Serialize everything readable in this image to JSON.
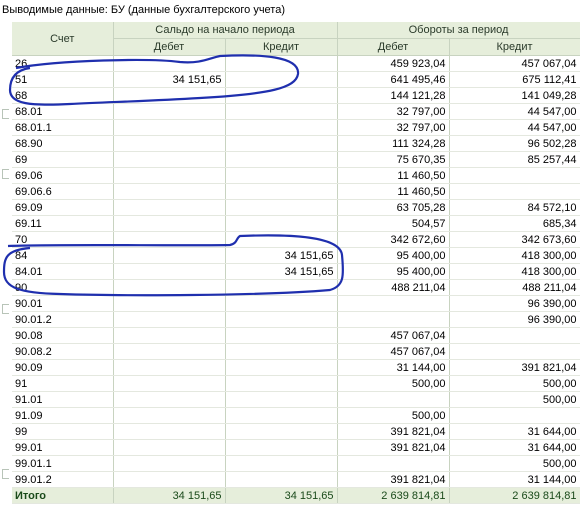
{
  "title": "Выводимые данные: БУ (данные бухгалтерского учета)",
  "header": {
    "col_account": "Счет",
    "group_opening": "Сальдо на начало периода",
    "group_turnover": "Обороты за период",
    "debit": "Дебет",
    "credit": "Кредит"
  },
  "rows": [
    {
      "account": "26",
      "level": 1,
      "open_debit": "",
      "open_credit": "",
      "turn_debit": "459 923,04",
      "turn_credit": "457 067,04"
    },
    {
      "account": "51",
      "level": 1,
      "open_debit": "34 151,65",
      "open_credit": "",
      "turn_debit": "641 495,46",
      "turn_credit": "675 112,41"
    },
    {
      "account": "68",
      "level": 1,
      "open_debit": "",
      "open_credit": "",
      "turn_debit": "144 121,28",
      "turn_credit": "141 049,28"
    },
    {
      "account": "68.01",
      "level": 2,
      "open_debit": "",
      "open_credit": "",
      "turn_debit": "32 797,00",
      "turn_credit": "44 547,00"
    },
    {
      "account": "68.01.1",
      "level": 3,
      "open_debit": "",
      "open_credit": "",
      "turn_debit": "32 797,00",
      "turn_credit": "44 547,00"
    },
    {
      "account": "68.90",
      "level": 2,
      "open_debit": "",
      "open_credit": "",
      "turn_debit": "111 324,28",
      "turn_credit": "96 502,28"
    },
    {
      "account": "69",
      "level": 1,
      "open_debit": "",
      "open_credit": "",
      "turn_debit": "75 670,35",
      "turn_credit": "85 257,44"
    },
    {
      "account": "69.06",
      "level": 2,
      "open_debit": "",
      "open_credit": "",
      "turn_debit": "11 460,50",
      "turn_credit": ""
    },
    {
      "account": "69.06.6",
      "level": 3,
      "open_debit": "",
      "open_credit": "",
      "turn_debit": "11 460,50",
      "turn_credit": ""
    },
    {
      "account": "69.09",
      "level": 2,
      "open_debit": "",
      "open_credit": "",
      "turn_debit": "63 705,28",
      "turn_credit": "84 572,10"
    },
    {
      "account": "69.11",
      "level": 2,
      "open_debit": "",
      "open_credit": "",
      "turn_debit": "504,57",
      "turn_credit": "685,34"
    },
    {
      "account": "70",
      "level": 1,
      "open_debit": "",
      "open_credit": "",
      "turn_debit": "342 672,60",
      "turn_credit": "342 673,60"
    },
    {
      "account": "84",
      "level": 1,
      "open_debit": "",
      "open_credit": "34 151,65",
      "turn_debit": "95 400,00",
      "turn_credit": "418 300,00"
    },
    {
      "account": "84.01",
      "level": 2,
      "open_debit": "",
      "open_credit": "34 151,65",
      "turn_debit": "95 400,00",
      "turn_credit": "418 300,00"
    },
    {
      "account": "90",
      "level": 1,
      "open_debit": "",
      "open_credit": "",
      "turn_debit": "488 211,04",
      "turn_credit": "488 211,04"
    },
    {
      "account": "90.01",
      "level": 2,
      "open_debit": "",
      "open_credit": "",
      "turn_debit": "",
      "turn_credit": "96 390,00"
    },
    {
      "account": "90.01.2",
      "level": 3,
      "open_debit": "",
      "open_credit": "",
      "turn_debit": "",
      "turn_credit": "96 390,00"
    },
    {
      "account": "90.08",
      "level": 2,
      "open_debit": "",
      "open_credit": "",
      "turn_debit": "457 067,04",
      "turn_credit": ""
    },
    {
      "account": "90.08.2",
      "level": 3,
      "open_debit": "",
      "open_credit": "",
      "turn_debit": "457 067,04",
      "turn_credit": ""
    },
    {
      "account": "90.09",
      "level": 2,
      "open_debit": "",
      "open_credit": "",
      "turn_debit": "31 144,00",
      "turn_credit": "391 821,04"
    },
    {
      "account": "91",
      "level": 1,
      "open_debit": "",
      "open_credit": "",
      "turn_debit": "500,00",
      "turn_credit": "500,00"
    },
    {
      "account": "91.01",
      "level": 2,
      "open_debit": "",
      "open_credit": "",
      "turn_debit": "",
      "turn_credit": "500,00"
    },
    {
      "account": "91.09",
      "level": 2,
      "open_debit": "",
      "open_credit": "",
      "turn_debit": "500,00",
      "turn_credit": ""
    },
    {
      "account": "99",
      "level": 1,
      "open_debit": "",
      "open_credit": "",
      "turn_debit": "391 821,04",
      "turn_credit": "31 644,00"
    },
    {
      "account": "99.01",
      "level": 2,
      "open_debit": "",
      "open_credit": "",
      "turn_debit": "391 821,04",
      "turn_credit": "31 644,00"
    },
    {
      "account": "99.01.1",
      "level": 3,
      "open_debit": "",
      "open_credit": "",
      "turn_debit": "",
      "turn_credit": "500,00"
    },
    {
      "account": "99.01.2",
      "level": 3,
      "open_debit": "",
      "open_credit": "",
      "turn_debit": "391 821,04",
      "turn_credit": "31 144,00"
    }
  ],
  "total": {
    "label": "Итого",
    "open_debit": "34 151,65",
    "open_credit": "34 151,65",
    "turn_debit": "2 639 814,81",
    "turn_credit": "2 639 814,81"
  },
  "annotation_color": "#1f2fae"
}
